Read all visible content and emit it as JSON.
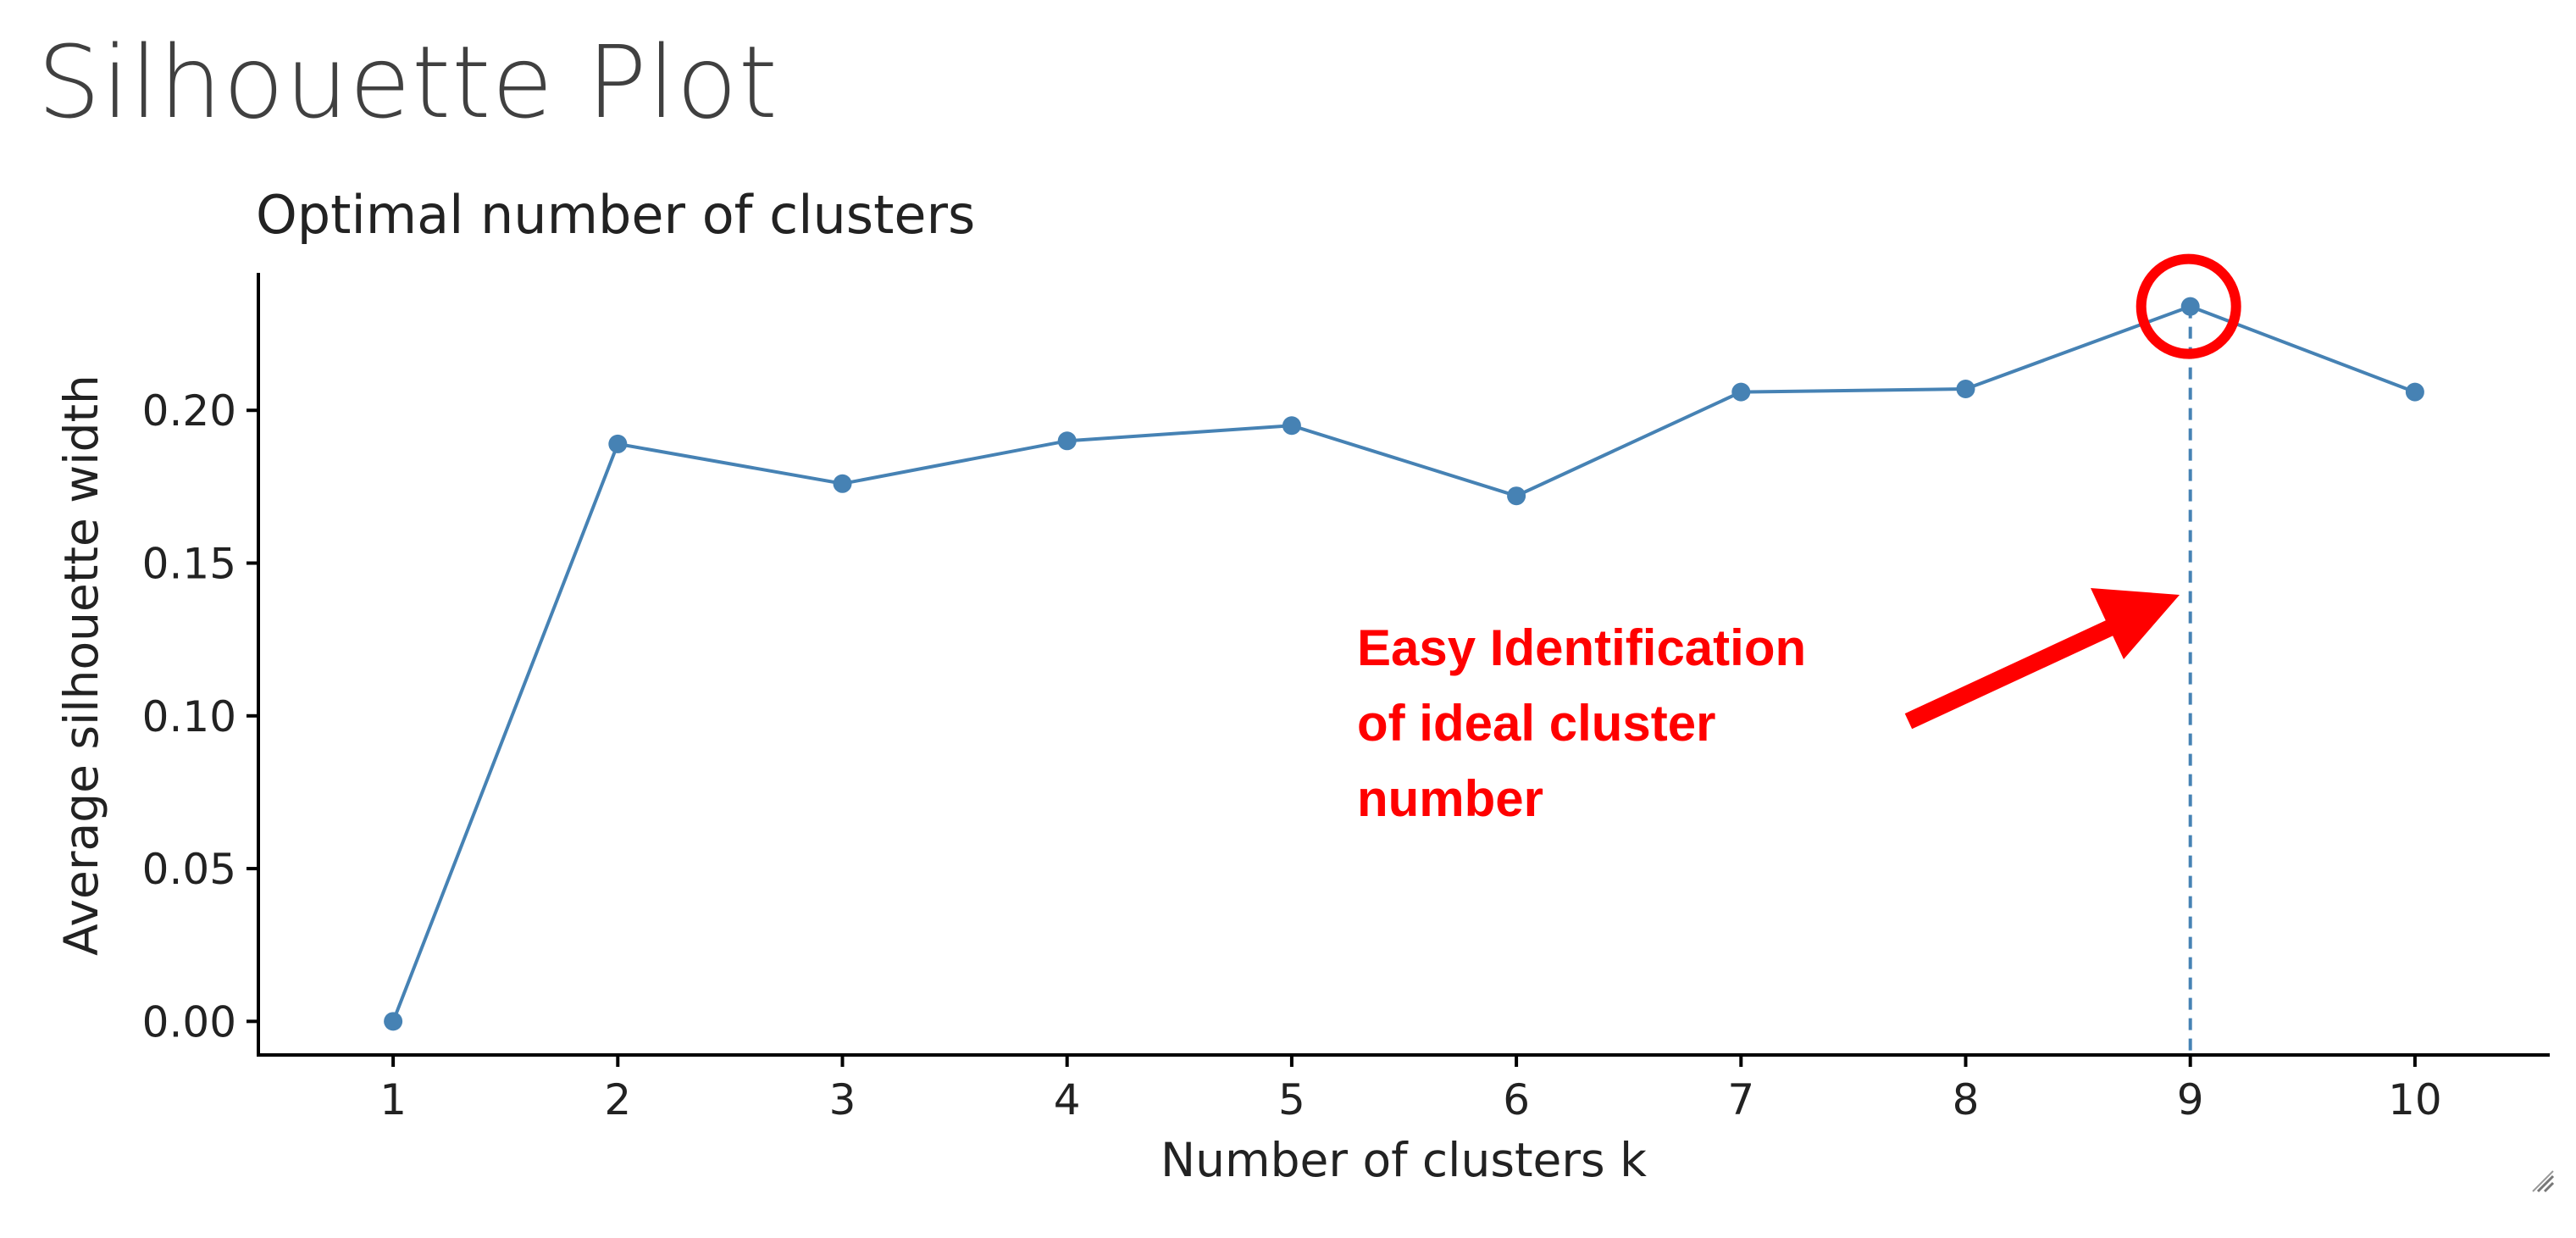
{
  "slide": {
    "title": "Silhouette Plot"
  },
  "chart_data": {
    "type": "line",
    "title": "Optimal number of clusters",
    "xlabel": "Number of clusters k",
    "ylabel": "Average silhouette width",
    "x": [
      1,
      2,
      3,
      4,
      5,
      6,
      7,
      8,
      9,
      10
    ],
    "series": [
      {
        "values": [
          0.0,
          0.189,
          0.176,
          0.19,
          0.195,
          0.172,
          0.206,
          0.207,
          0.234,
          0.206
        ]
      }
    ],
    "ylim": [
      -0.011,
      0.245
    ],
    "xlim": [
      0.4,
      10.6
    ],
    "yticks": [
      "0.00",
      "0.05",
      "0.10",
      "0.15",
      "0.20"
    ],
    "ytick_values": [
      0.0,
      0.05,
      0.1,
      0.15,
      0.2
    ],
    "xticks": [
      "1",
      "2",
      "3",
      "4",
      "5",
      "6",
      "7",
      "8",
      "9",
      "10"
    ],
    "optimal_k": 9,
    "grid": false,
    "line_color": "#4682b4",
    "annotation": {
      "lines": [
        "Easy Identification",
        "of ideal cluster",
        "number"
      ],
      "color": "#ff0000"
    }
  }
}
